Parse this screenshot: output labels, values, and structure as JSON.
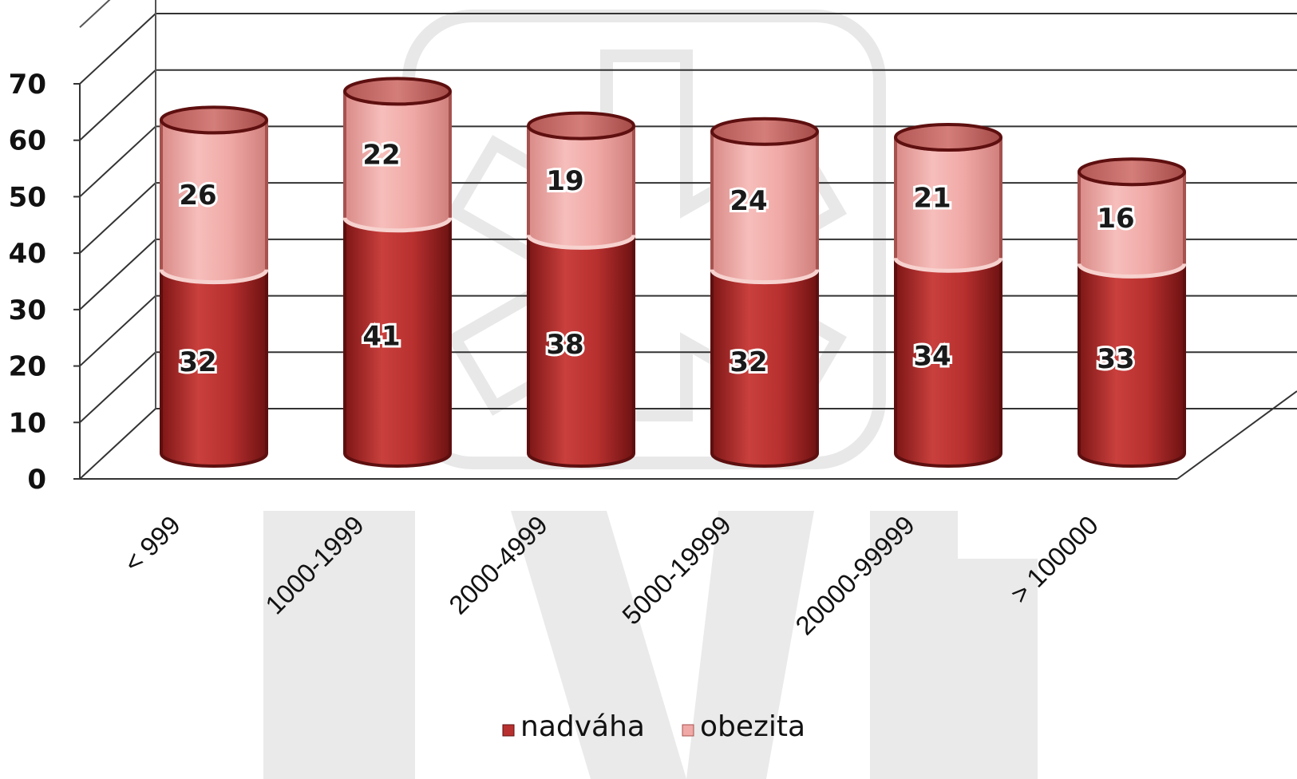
{
  "chart_data": {
    "type": "bar",
    "stacked": true,
    "style": "3d-cylinder",
    "categories": [
      "< 999",
      "1000-1999",
      "2000-4999",
      "5000-19999",
      "20000-99999",
      "> 100000"
    ],
    "series": [
      {
        "name": "nadváha",
        "values": [
          32,
          41,
          38,
          32,
          34,
          33
        ],
        "color": "#b8302f"
      },
      {
        "name": "obezita",
        "values": [
          26,
          22,
          19,
          24,
          21,
          16
        ],
        "color": "#f0a9a6"
      }
    ],
    "ylim": [
      0,
      70
    ],
    "yticks": [
      0,
      10,
      20,
      30,
      40,
      50,
      60,
      70
    ],
    "grid": true,
    "legend_position": "bottom-center"
  }
}
